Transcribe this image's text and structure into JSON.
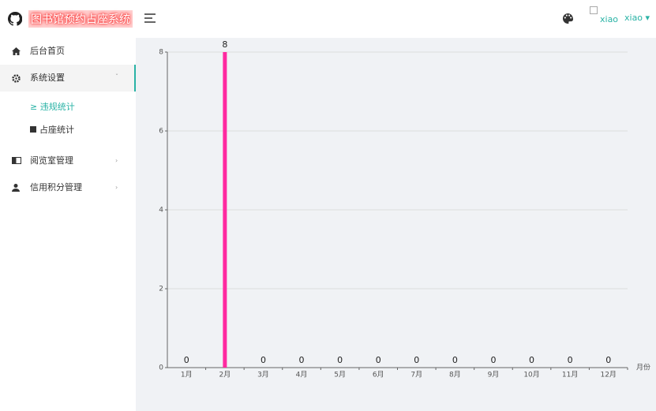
{
  "header": {
    "title": "图书馆预约占座系统",
    "avatar_alt": "xiao",
    "user": "xiao"
  },
  "menu": {
    "items": [
      {
        "label": "后台首页"
      },
      {
        "label": "系统设置",
        "children": [
          "违规统计",
          "占座统计"
        ]
      },
      {
        "label": "阅览室管理"
      },
      {
        "label": "信用积分管理"
      }
    ]
  },
  "chart_data": {
    "type": "bar",
    "x_label": "月份",
    "categories": [
      "1月",
      "2月",
      "3月",
      "4月",
      "5月",
      "6月",
      "7月",
      "8月",
      "9月",
      "10月",
      "11月",
      "12月"
    ],
    "values": [
      0,
      8,
      0,
      0,
      0,
      0,
      0,
      0,
      0,
      0,
      0,
      0
    ],
    "color": "#ff2aa0",
    "ylim": [
      0,
      8
    ],
    "yticks": [
      0,
      2,
      4,
      6,
      8
    ],
    "grid": true
  }
}
